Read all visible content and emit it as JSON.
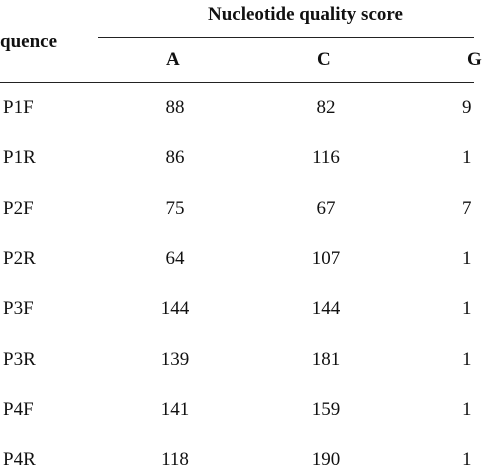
{
  "table": {
    "group_header": "Nucleotide quality score",
    "sequence_header": "quence",
    "columns": [
      "A",
      "C",
      "G"
    ],
    "rows": [
      {
        "sequence": "P1F",
        "a": "88",
        "c": "82",
        "g": "9"
      },
      {
        "sequence": "P1R",
        "a": "86",
        "c": "116",
        "g": "1"
      },
      {
        "sequence": "P2F",
        "a": "75",
        "c": "67",
        "g": "7"
      },
      {
        "sequence": "P2R",
        "a": "64",
        "c": "107",
        "g": "1"
      },
      {
        "sequence": "P3F",
        "a": "144",
        "c": "144",
        "g": "1"
      },
      {
        "sequence": "P3R",
        "a": "139",
        "c": "181",
        "g": "1"
      },
      {
        "sequence": "P4F",
        "a": "141",
        "c": "159",
        "g": "1"
      },
      {
        "sequence": "P4R",
        "a": "118",
        "c": "190",
        "g": "1"
      }
    ]
  }
}
